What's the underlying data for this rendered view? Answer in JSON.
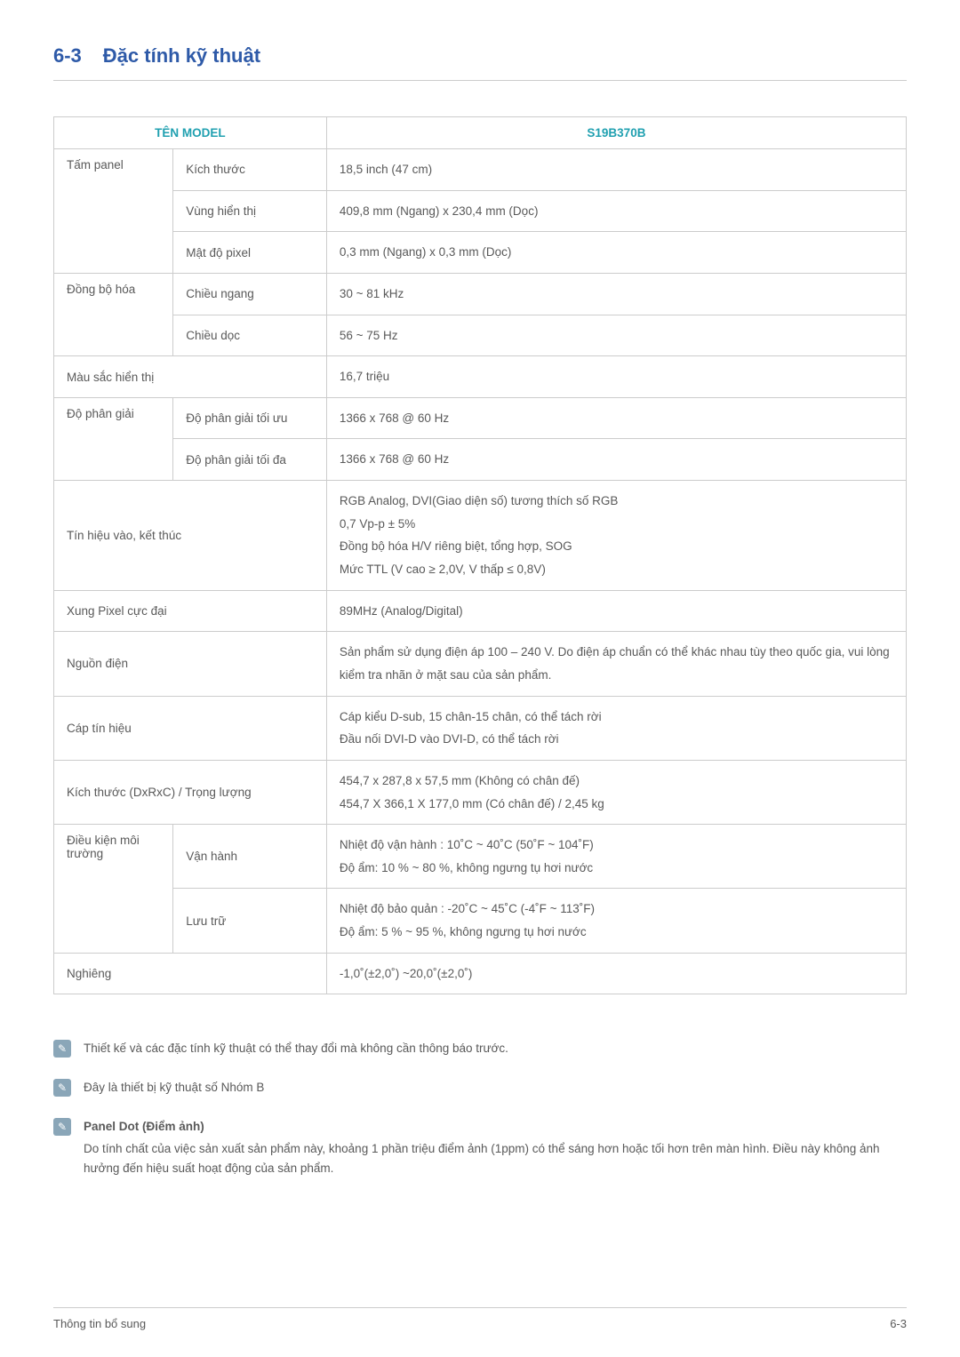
{
  "section": {
    "number": "6-3",
    "title": "Đặc tính kỹ thuật"
  },
  "table": {
    "header": {
      "model_name_label": "TÊN MODEL",
      "model_value": "S19B370B"
    },
    "rows": [
      {
        "rowspan_a": 3,
        "a": "Tấm panel",
        "b": "Kích thước",
        "v": "18,5 inch (47 cm)"
      },
      {
        "b": "Vùng hiển thị",
        "v": "409,8 mm (Ngang) x 230,4 mm (Dọc)"
      },
      {
        "b": "Mật độ pixel",
        "v": "0,3 mm (Ngang) x 0,3 mm (Dọc)"
      },
      {
        "rowspan_a": 2,
        "a": "Đồng bộ hóa",
        "b": "Chiều ngang",
        "v": "30 ~ 81 kHz"
      },
      {
        "b": "Chiều dọc",
        "v": "56 ~ 75 Hz"
      },
      {
        "ab": "Màu sắc hiển thị",
        "v": "16,7 triệu"
      },
      {
        "rowspan_a": 2,
        "a": "Độ phân giải",
        "b": "Độ phân giải tối ưu",
        "v": "1366 x 768 @ 60 Hz"
      },
      {
        "b": "Độ phân giải tối đa",
        "v": "1366 x 768 @ 60 Hz"
      },
      {
        "ab": "Tín hiệu vào, kết thúc",
        "v": "RGB Analog, DVI(Giao diện số) tương thích số RGB\n0,7 Vp-p ± 5%\nĐồng bộ hóa H/V riêng biệt, tổng hợp, SOG\nMức TTL (V cao ≥ 2,0V, V thấp ≤ 0,8V)"
      },
      {
        "ab": "Xung Pixel cực đại",
        "v": "89MHz (Analog/Digital)"
      },
      {
        "ab": "Nguồn điện",
        "v": "Sản phẩm sử dụng điện áp 100 – 240 V. Do điện áp chuẩn có thể khác nhau tùy theo quốc gia, vui lòng kiểm tra nhãn ở mặt sau của sản phẩm."
      },
      {
        "ab": "Cáp tín hiệu",
        "v": "Cáp kiểu D-sub, 15 chân-15 chân, có thể tách rời\nĐầu nối DVI-D vào DVI-D, có thể tách rời"
      },
      {
        "ab": "Kích thước (DxRxC) / Trọng lượng",
        "v": "454,7 x 287,8 x 57,5 mm (Không có chân đế)\n454,7 X 366,1 X 177,0 mm (Có chân đế) / 2,45 kg"
      },
      {
        "rowspan_a": 2,
        "a": "Điều kiện môi trường",
        "b": "Vận hành",
        "v": "Nhiệt độ vận hành : 10˚C ~ 40˚C (50˚F ~ 104˚F)\nĐộ ẩm: 10 % ~ 80 %, không ngưng tụ hơi nước"
      },
      {
        "b": "Lưu trữ",
        "v": "Nhiệt độ bảo quản : -20˚C ~ 45˚C (-4˚F ~ 113˚F)\nĐộ ẩm: 5 % ~ 95 %, không ngưng tụ hơi nước"
      },
      {
        "ab": "Nghiêng",
        "v": "-1,0˚(±2,0˚) ~20,0˚(±2,0˚)"
      }
    ]
  },
  "notes": [
    {
      "title": "",
      "body": "Thiết kế và các đặc tính kỹ thuật có thể thay đổi mà không cần thông báo trước."
    },
    {
      "title": "",
      "body": "Đây là thiết bị kỹ thuật số Nhóm B"
    },
    {
      "title": "Panel Dot (Điểm ảnh)",
      "body": "Do tính chất của việc sản xuất sản phẩm này, khoảng 1 phần triệu điểm ảnh (1ppm) có thể sáng hơn hoặc tối hơn trên màn hình. Điều này không ảnh hưởng đến hiệu suất hoạt động của sản phẩm."
    }
  ],
  "footer": {
    "left": "Thông tin bổ sung",
    "right": "6-3"
  }
}
